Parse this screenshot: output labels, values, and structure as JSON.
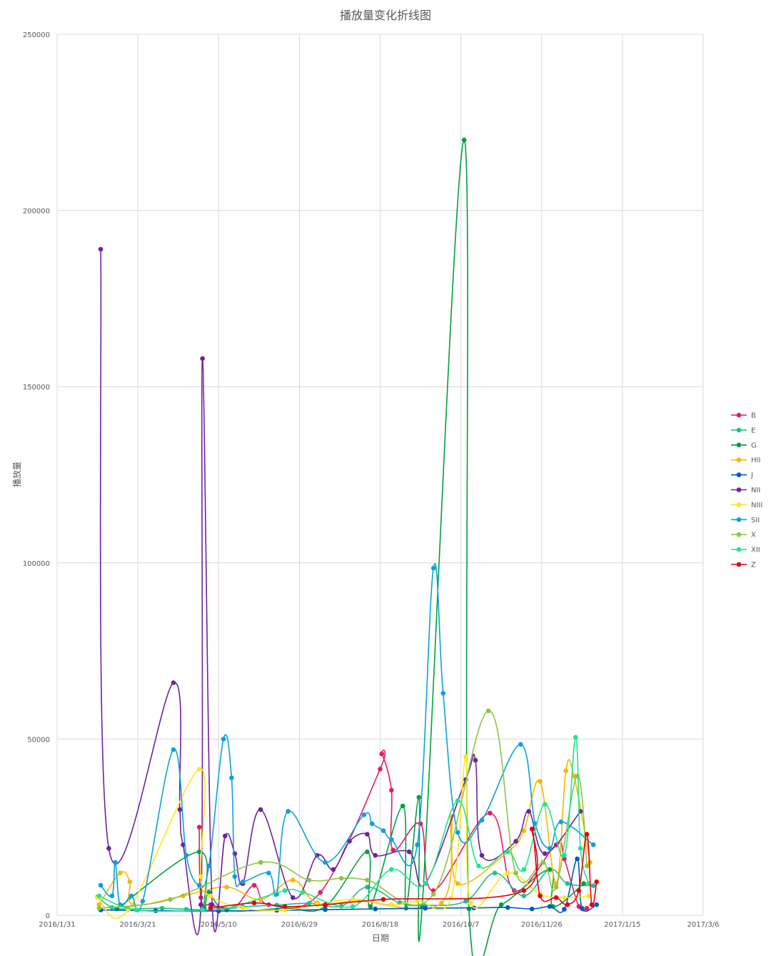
{
  "chart_data": {
    "type": "line",
    "title": "播放量变化折线图",
    "xlabel": "日期",
    "ylabel": "播放量",
    "ylim": [
      0,
      250000
    ],
    "yticks": [
      0,
      50000,
      100000,
      150000,
      200000,
      250000
    ],
    "ytick_labels": [
      "0",
      "50000",
      "100000",
      "150000",
      "200000",
      "250000"
    ],
    "xlim": [
      "2016-01-31",
      "2017-03-06"
    ],
    "xticks": [
      "2016-01-31",
      "2016-03-21",
      "2016-05-10",
      "2016-06-29",
      "2016-08-18",
      "2016-10-07",
      "2016-11-26",
      "2017-01-15",
      "2017-03-06"
    ],
    "xtick_labels": [
      "2016/1/31",
      "2016/3/21",
      "2016/5/10",
      "2016/6/29",
      "2016/8/18",
      "2016/10/7",
      "2016/11/26",
      "2017/1/15",
      "2017/3/6"
    ],
    "grid": true,
    "legend_position": "right",
    "series": [
      {
        "name": "B",
        "color": "#E6196B",
        "points": [
          [
            "2016-04-28",
            25000
          ],
          [
            "2016-04-29",
            5000
          ],
          [
            "2016-05-05",
            3000
          ],
          [
            "2016-05-20",
            2500
          ],
          [
            "2016-06-01",
            8500
          ],
          [
            "2016-06-10",
            3000
          ],
          [
            "2016-07-12",
            6500
          ],
          [
            "2016-08-18",
            41500
          ],
          [
            "2016-08-19",
            45800
          ],
          [
            "2016-08-25",
            35500
          ],
          [
            "2016-08-26",
            18500
          ],
          [
            "2016-09-12",
            26000
          ],
          [
            "2016-09-20",
            7000
          ],
          [
            "2016-10-25",
            29000
          ],
          [
            "2016-11-09",
            7000
          ],
          [
            "2016-12-05",
            20000
          ],
          [
            "2016-12-10",
            16000
          ],
          [
            "2016-12-19",
            2500
          ],
          [
            "2016-12-24",
            2000
          ]
        ]
      },
      {
        "name": "E",
        "color": "#1EBE92",
        "points": [
          [
            "2016-02-25",
            5200
          ],
          [
            "2016-03-05",
            2200
          ],
          [
            "2016-03-15",
            1800
          ],
          [
            "2016-04-05",
            2000
          ],
          [
            "2016-04-20",
            1700
          ],
          [
            "2016-05-10",
            1600
          ],
          [
            "2016-05-25",
            2400
          ],
          [
            "2016-06-15",
            2900
          ],
          [
            "2016-07-05",
            3400
          ],
          [
            "2016-07-25",
            2600
          ],
          [
            "2016-08-10",
            8000
          ],
          [
            "2016-08-30",
            3500
          ],
          [
            "2016-09-15",
            2800
          ],
          [
            "2016-10-10",
            4000
          ],
          [
            "2016-10-28",
            12000
          ],
          [
            "2016-11-15",
            5500
          ],
          [
            "2016-12-01",
            13000
          ],
          [
            "2016-12-12",
            9000
          ],
          [
            "2016-12-28",
            8400
          ]
        ]
      },
      {
        "name": "G",
        "color": "#00A040",
        "points": [
          [
            "2016-03-08",
            1800
          ],
          [
            "2016-04-28",
            18000
          ],
          [
            "2016-05-01",
            2000
          ],
          [
            "2016-05-04",
            6500
          ],
          [
            "2016-05-15",
            1500
          ],
          [
            "2016-06-20",
            2000
          ],
          [
            "2016-07-15",
            2500
          ],
          [
            "2016-08-10",
            18000
          ],
          [
            "2016-08-12",
            2500
          ],
          [
            "2016-09-01",
            31000
          ],
          [
            "2016-09-03",
            2000
          ],
          [
            "2016-09-11",
            33500
          ],
          [
            "2016-09-13",
            2200
          ],
          [
            "2016-10-09",
            220000
          ],
          [
            "2016-10-12",
            1800
          ],
          [
            "2016-11-01",
            3000
          ],
          [
            "2016-12-01",
            13000
          ],
          [
            "2016-12-03",
            2500
          ],
          [
            "2016-12-22",
            9000
          ]
        ]
      },
      {
        "name": "HII",
        "color": "#F5B800",
        "points": [
          [
            "2016-02-26",
            3000
          ],
          [
            "2016-03-10",
            12000
          ],
          [
            "2016-03-16",
            9500
          ],
          [
            "2016-03-18",
            3000
          ],
          [
            "2016-04-18",
            5500
          ],
          [
            "2016-05-15",
            8000
          ],
          [
            "2016-06-05",
            4500
          ],
          [
            "2016-06-25",
            10000
          ],
          [
            "2016-07-10",
            3500
          ],
          [
            "2016-08-05",
            4000
          ],
          [
            "2016-09-25",
            3500
          ],
          [
            "2016-10-01",
            28000
          ],
          [
            "2016-10-05",
            9000
          ],
          [
            "2016-11-05",
            18000
          ],
          [
            "2016-11-15",
            24000
          ],
          [
            "2016-11-25",
            38000
          ],
          [
            "2016-12-05",
            9000
          ],
          [
            "2016-12-11",
            41000
          ],
          [
            "2016-12-16",
            39500
          ],
          [
            "2016-12-26",
            15000
          ]
        ]
      },
      {
        "name": "J",
        "color": "#005BBF",
        "points": [
          [
            "2016-02-27",
            1500
          ],
          [
            "2016-04-01",
            1300
          ],
          [
            "2016-05-10",
            1200
          ],
          [
            "2016-06-15",
            1400
          ],
          [
            "2016-07-15",
            1600
          ],
          [
            "2016-08-15",
            1800
          ],
          [
            "2016-09-15",
            2000
          ],
          [
            "2016-10-15",
            2100
          ],
          [
            "2016-11-05",
            2200
          ],
          [
            "2016-11-20",
            1800
          ],
          [
            "2016-12-01",
            2500
          ],
          [
            "2016-12-10",
            1700
          ],
          [
            "2016-12-18",
            16000
          ],
          [
            "2016-12-21",
            2000
          ],
          [
            "2016-12-30",
            3000
          ]
        ]
      },
      {
        "name": "NII",
        "color": "#6E22A0",
        "points": [
          [
            "2016-02-27",
            189000
          ],
          [
            "2016-03-03",
            19000
          ],
          [
            "2016-04-12",
            66000
          ],
          [
            "2016-04-16",
            30000
          ],
          [
            "2016-04-18",
            20000
          ],
          [
            "2016-04-29",
            3000
          ],
          [
            "2016-04-30",
            158000
          ],
          [
            "2016-05-06",
            3000
          ],
          [
            "2016-05-14",
            22500
          ],
          [
            "2016-05-20",
            17500
          ],
          [
            "2016-05-25",
            9000
          ],
          [
            "2016-06-05",
            30000
          ],
          [
            "2016-06-25",
            5000
          ],
          [
            "2016-07-10",
            17000
          ],
          [
            "2016-07-20",
            13000
          ],
          [
            "2016-07-30",
            21000
          ],
          [
            "2016-08-10",
            23000
          ],
          [
            "2016-08-15",
            17000
          ],
          [
            "2016-09-05",
            18000
          ],
          [
            "2016-09-15",
            9000
          ],
          [
            "2016-10-10",
            38500
          ],
          [
            "2016-10-16",
            44000
          ],
          [
            "2016-10-20",
            17000
          ],
          [
            "2016-11-10",
            21000
          ],
          [
            "2016-11-18",
            29500
          ],
          [
            "2016-11-28",
            17500
          ],
          [
            "2016-12-20",
            29500
          ]
        ]
      },
      {
        "name": "NIII",
        "color": "#FFE61E",
        "points": [
          [
            "2016-02-25",
            5000
          ],
          [
            "2016-03-15",
            1500
          ],
          [
            "2016-04-28",
            41500
          ],
          [
            "2016-04-29",
            11000
          ],
          [
            "2016-05-05",
            5500
          ],
          [
            "2016-05-25",
            2000
          ],
          [
            "2016-06-20",
            1500
          ],
          [
            "2016-07-10",
            3000
          ],
          [
            "2016-08-01",
            4500
          ],
          [
            "2016-08-25",
            3000
          ],
          [
            "2016-09-10",
            4000
          ],
          [
            "2016-10-01",
            5000
          ],
          [
            "2016-10-10",
            45000
          ],
          [
            "2016-10-13",
            3500
          ],
          [
            "2016-11-05",
            12000
          ],
          [
            "2016-11-25",
            6000
          ],
          [
            "2016-12-10",
            5000
          ],
          [
            "2016-12-25",
            5500
          ]
        ]
      },
      {
        "name": "SII",
        "color": "#0AA2DC",
        "points": [
          [
            "2016-02-27",
            8500
          ],
          [
            "2016-03-05",
            5500
          ],
          [
            "2016-03-07",
            15000
          ],
          [
            "2016-03-10",
            3000
          ],
          [
            "2016-03-17",
            5500
          ],
          [
            "2016-03-24",
            4000
          ],
          [
            "2016-04-12",
            47000
          ],
          [
            "2016-04-20",
            17000
          ],
          [
            "2016-04-28",
            8500
          ],
          [
            "2016-05-04",
            14000
          ],
          [
            "2016-05-13",
            50000
          ],
          [
            "2016-05-18",
            39000
          ],
          [
            "2016-05-20",
            11000
          ],
          [
            "2016-05-25",
            9500
          ],
          [
            "2016-06-10",
            12000
          ],
          [
            "2016-06-15",
            6000
          ],
          [
            "2016-06-22",
            29500
          ],
          [
            "2016-07-15",
            15000
          ],
          [
            "2016-08-08",
            28500
          ],
          [
            "2016-08-13",
            26000
          ],
          [
            "2016-08-20",
            24000
          ],
          [
            "2016-08-25",
            21500
          ],
          [
            "2016-09-10",
            20000
          ],
          [
            "2016-09-20",
            98500
          ],
          [
            "2016-09-26",
            63000
          ],
          [
            "2016-10-05",
            23500
          ],
          [
            "2016-10-20",
            27000
          ],
          [
            "2016-11-13",
            48500
          ],
          [
            "2016-11-22",
            26000
          ],
          [
            "2016-12-01",
            19000
          ],
          [
            "2016-12-08",
            26500
          ],
          [
            "2016-12-28",
            20000
          ]
        ]
      },
      {
        "name": "X",
        "color": "#8DC63F",
        "points": [
          [
            "2016-02-26",
            2000
          ],
          [
            "2016-04-10",
            4500
          ],
          [
            "2016-06-05",
            15000
          ],
          [
            "2016-07-05",
            10000
          ],
          [
            "2016-07-25",
            10500
          ],
          [
            "2016-08-10",
            10000
          ],
          [
            "2016-09-20",
            6000
          ],
          [
            "2016-10-24",
            58000
          ],
          [
            "2016-11-10",
            12000
          ],
          [
            "2016-11-27",
            15000
          ],
          [
            "2016-12-05",
            8000
          ],
          [
            "2016-12-18",
            39500
          ],
          [
            "2016-12-24",
            14000
          ]
        ]
      },
      {
        "name": "XII",
        "color": "#1EE68E",
        "points": [
          [
            "2016-02-26",
            5500
          ],
          [
            "2016-03-20",
            1500
          ],
          [
            "2016-04-30",
            1500
          ],
          [
            "2016-05-20",
            2500
          ],
          [
            "2016-06-20",
            7000
          ],
          [
            "2016-07-01",
            6500
          ],
          [
            "2016-08-01",
            2500
          ],
          [
            "2016-08-25",
            13000
          ],
          [
            "2016-09-15",
            9000
          ],
          [
            "2016-10-05",
            32500
          ],
          [
            "2016-10-18",
            14000
          ],
          [
            "2016-11-05",
            18000
          ],
          [
            "2016-11-15",
            13000
          ],
          [
            "2016-11-28",
            31500
          ],
          [
            "2016-12-10",
            17000
          ],
          [
            "2016-12-17",
            50500
          ],
          [
            "2016-12-20",
            19000
          ],
          [
            "2016-12-25",
            9000
          ]
        ]
      },
      {
        "name": "Z",
        "color": "#E60012",
        "points": [
          [
            "2016-05-05",
            2000
          ],
          [
            "2016-06-01",
            3500
          ],
          [
            "2016-06-20",
            2500
          ],
          [
            "2016-07-15",
            3000
          ],
          [
            "2016-08-20",
            4500
          ],
          [
            "2016-11-15",
            7000
          ],
          [
            "2016-11-20",
            24500
          ],
          [
            "2016-11-25",
            5500
          ],
          [
            "2016-12-05",
            5000
          ],
          [
            "2016-12-12",
            3000
          ],
          [
            "2016-12-19",
            7000
          ],
          [
            "2016-12-24",
            23000
          ],
          [
            "2016-12-27",
            3000
          ],
          [
            "2016-12-30",
            9500
          ]
        ]
      }
    ]
  }
}
